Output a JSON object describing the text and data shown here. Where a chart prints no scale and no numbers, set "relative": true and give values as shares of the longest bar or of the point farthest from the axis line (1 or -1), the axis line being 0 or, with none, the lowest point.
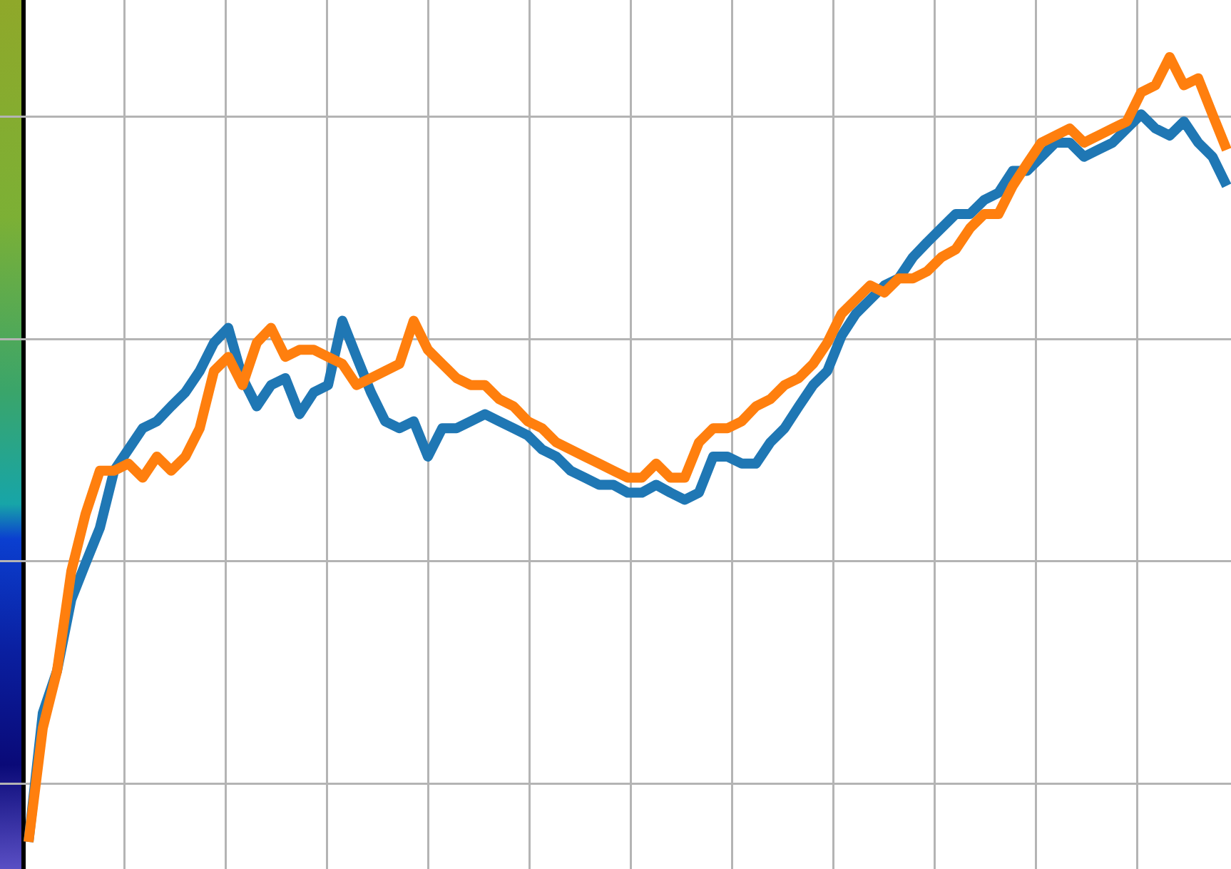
{
  "chart_data": {
    "type": "line",
    "relative": true,
    "grid": true,
    "marker": "none",
    "categories": [
      null,
      null,
      null,
      null,
      null,
      null,
      null,
      null,
      null,
      null,
      null,
      null,
      null,
      null,
      null,
      null,
      null,
      null,
      null,
      null,
      null,
      null,
      null,
      null,
      null,
      null,
      null,
      null,
      null,
      null,
      null,
      null,
      null,
      null,
      null,
      null,
      null,
      null,
      null,
      null,
      null,
      null,
      null,
      null,
      null,
      null,
      null,
      null,
      null,
      null,
      null,
      null,
      null,
      null,
      null,
      null,
      null,
      null,
      null,
      null,
      null,
      null,
      null,
      null,
      null,
      null,
      null,
      null,
      null,
      null,
      null,
      null,
      null,
      null,
      null,
      null,
      null,
      null,
      null,
      null,
      null,
      null,
      null,
      null,
      null
    ],
    "series": [
      {
        "color": "#1f77b4",
        "values": [
          0,
          0.164,
          0.218,
          0.309,
          0.355,
          0.4,
          0.473,
          0.5,
          0.527,
          0.536,
          0.555,
          0.573,
          0.6,
          0.636,
          0.655,
          0.591,
          0.555,
          0.582,
          0.591,
          0.545,
          0.573,
          0.582,
          0.664,
          0.618,
          0.573,
          0.536,
          0.527,
          0.536,
          0.491,
          0.527,
          0.527,
          0.536,
          0.545,
          0.536,
          0.527,
          0.518,
          0.5,
          0.491,
          0.473,
          0.464,
          0.455,
          0.455,
          0.445,
          0.445,
          0.455,
          0.445,
          0.436,
          0.445,
          0.491,
          0.491,
          0.482,
          0.482,
          0.509,
          0.527,
          0.555,
          0.582,
          0.6,
          0.645,
          0.673,
          0.691,
          0.709,
          0.718,
          0.745,
          0.764,
          0.782,
          0.8,
          0.8,
          0.818,
          0.827,
          0.855,
          0.855,
          0.873,
          0.891,
          0.891,
          0.873,
          0.882,
          0.891,
          0.909,
          0.927,
          0.909,
          0.9,
          0.918,
          0.891,
          0.873,
          0.836
        ]
      },
      {
        "color": "#ff7f0e",
        "values": [
          0,
          0.145,
          0.218,
          0.345,
          0.418,
          0.473,
          0.473,
          0.482,
          0.464,
          0.491,
          0.473,
          0.491,
          0.527,
          0.6,
          0.618,
          0.582,
          0.636,
          0.655,
          0.618,
          0.627,
          0.627,
          0.618,
          0.609,
          0.582,
          0.591,
          0.6,
          0.609,
          0.664,
          0.627,
          0.609,
          0.591,
          0.582,
          0.582,
          0.564,
          0.555,
          0.536,
          0.527,
          0.509,
          0.5,
          0.491,
          0.482,
          0.473,
          0.464,
          0.464,
          0.482,
          0.464,
          0.464,
          0.509,
          0.527,
          0.527,
          0.536,
          0.555,
          0.564,
          0.582,
          0.591,
          0.609,
          0.636,
          0.673,
          0.691,
          0.709,
          0.7,
          0.718,
          0.718,
          0.727,
          0.745,
          0.755,
          0.782,
          0.8,
          0.8,
          0.836,
          0.864,
          0.891,
          0.9,
          0.909,
          0.891,
          0.9,
          0.909,
          0.918,
          0.955,
          0.964,
          1,
          0.964,
          0.973,
          0.927,
          0.882
        ]
      }
    ]
  }
}
